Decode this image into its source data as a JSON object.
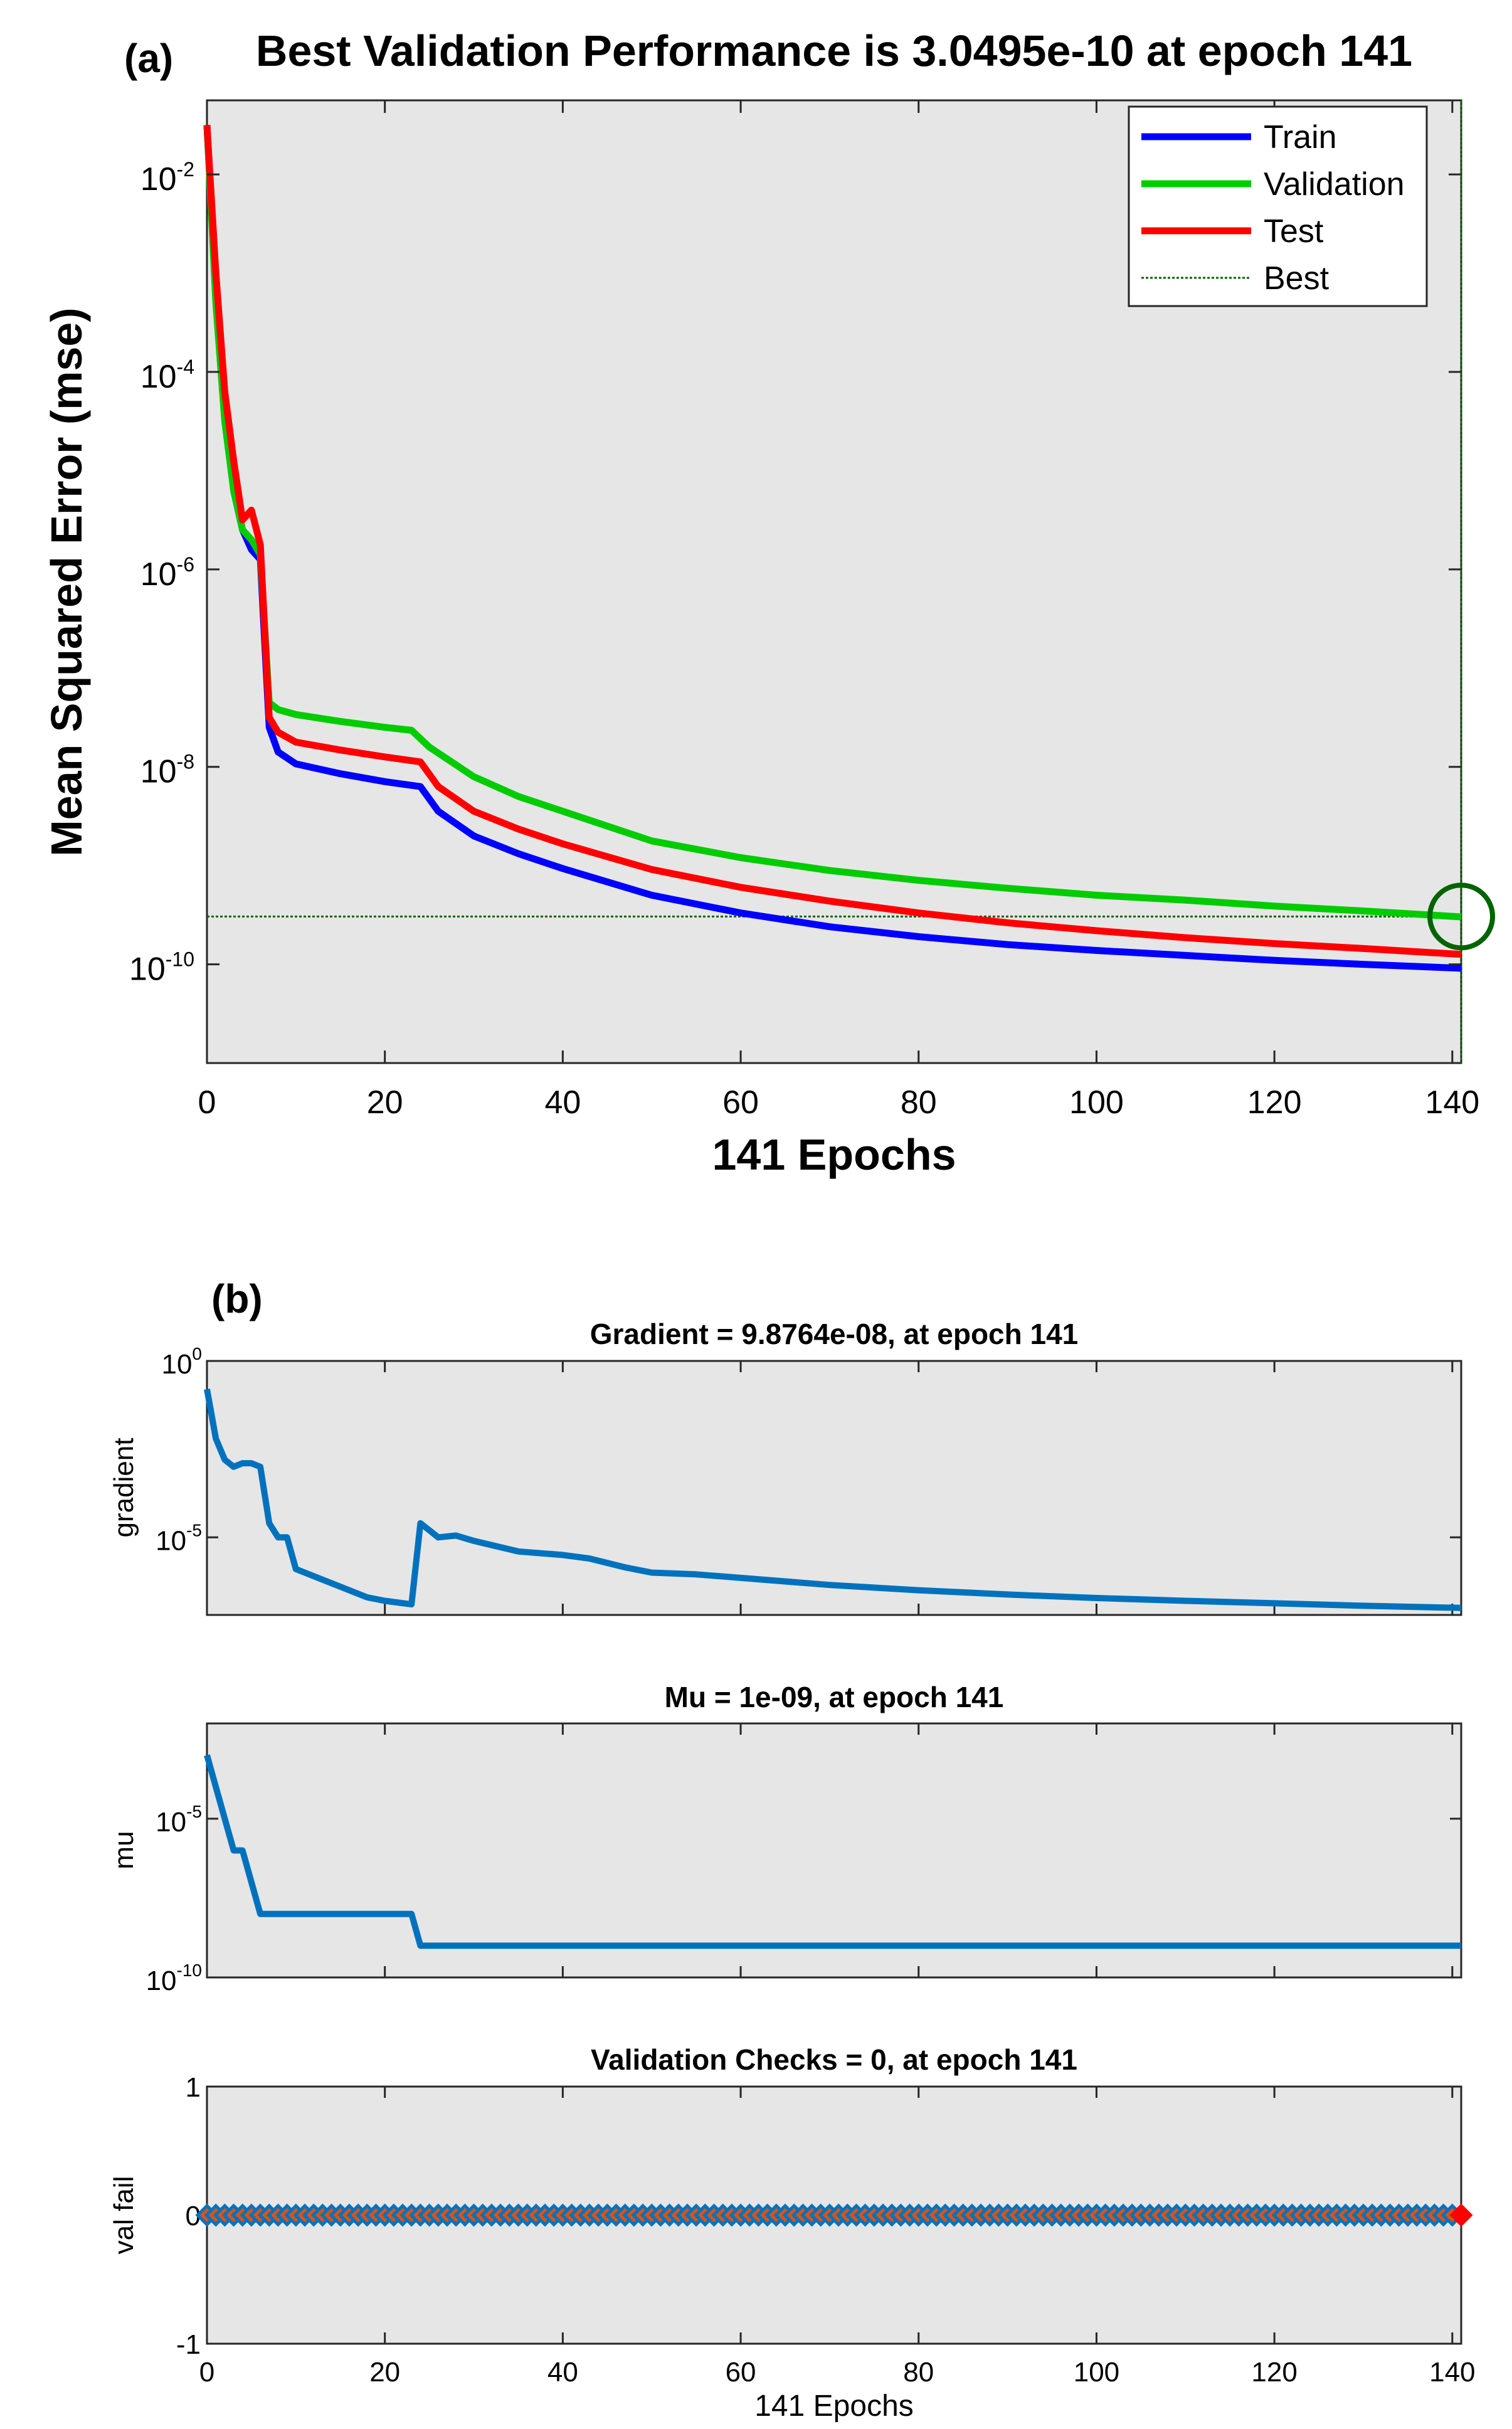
{
  "chart_data": [
    {
      "id": "performance",
      "type": "line",
      "panel_label": "(a)",
      "title": "Best Validation Performance is 3.0495e-10 at epoch 141",
      "xlabel": "141 Epochs",
      "ylabel": "Mean Squared Error  (mse)",
      "yscale": "log",
      "xlim": [
        0,
        141
      ],
      "ylim_log10": [
        -11,
        -1.25
      ],
      "x_ticks": [
        "0",
        "20",
        "40",
        "60",
        "80",
        "100",
        "120",
        "140"
      ],
      "y_ticks": [
        {
          "exp": -10,
          "label": "10",
          "sup": "-10"
        },
        {
          "exp": -8,
          "label": "10",
          "sup": "-8"
        },
        {
          "exp": -6,
          "label": "10",
          "sup": "-6"
        },
        {
          "exp": -4,
          "label": "10",
          "sup": "-4"
        },
        {
          "exp": -2,
          "label": "10",
          "sup": "-2"
        }
      ],
      "legend": [
        "Train",
        "Validation",
        "Test",
        "Best"
      ],
      "best": {
        "epoch": 141,
        "value": 3.0495e-10
      },
      "series": [
        {
          "name": "Train",
          "color": "#0000ff",
          "x": [
            0,
            1,
            2,
            3,
            4,
            5,
            6,
            7,
            8,
            10,
            15,
            20,
            24,
            26,
            30,
            35,
            40,
            50,
            60,
            70,
            80,
            90,
            100,
            110,
            120,
            130,
            141
          ],
          "log10": [
            -1.5,
            -3.2,
            -4.3,
            -5.2,
            -5.6,
            -5.8,
            -5.9,
            -7.6,
            -7.85,
            -7.97,
            -8.07,
            -8.15,
            -8.2,
            -8.45,
            -8.7,
            -8.88,
            -9.03,
            -9.3,
            -9.48,
            -9.62,
            -9.72,
            -9.8,
            -9.86,
            -9.91,
            -9.96,
            -10.0,
            -10.04
          ]
        },
        {
          "name": "Validation",
          "color": "#00cc00",
          "x": [
            0,
            1,
            2,
            3,
            4,
            5,
            6,
            7,
            8,
            10,
            15,
            20,
            23,
            25,
            30,
            35,
            40,
            50,
            60,
            70,
            80,
            90,
            100,
            110,
            120,
            130,
            141
          ],
          "log10": [
            -1.5,
            -3.3,
            -4.5,
            -5.2,
            -5.6,
            -5.7,
            -5.85,
            -7.35,
            -7.42,
            -7.47,
            -7.54,
            -7.6,
            -7.63,
            -7.8,
            -8.1,
            -8.3,
            -8.45,
            -8.75,
            -8.92,
            -9.05,
            -9.15,
            -9.23,
            -9.3,
            -9.35,
            -9.41,
            -9.46,
            -9.52
          ]
        },
        {
          "name": "Test",
          "color": "#ff0000",
          "x": [
            0,
            1,
            2,
            3,
            4,
            5,
            6,
            7,
            8,
            10,
            15,
            20,
            24,
            26,
            30,
            35,
            40,
            50,
            60,
            70,
            80,
            90,
            100,
            110,
            120,
            130,
            141
          ],
          "log10": [
            -1.5,
            -3.0,
            -4.2,
            -4.9,
            -5.5,
            -5.4,
            -5.75,
            -7.5,
            -7.65,
            -7.75,
            -7.83,
            -7.9,
            -7.95,
            -8.2,
            -8.45,
            -8.63,
            -8.78,
            -9.04,
            -9.22,
            -9.36,
            -9.48,
            -9.58,
            -9.66,
            -9.73,
            -9.79,
            -9.84,
            -9.9
          ]
        }
      ]
    },
    {
      "id": "gradient",
      "type": "line",
      "panel_label": "(b)",
      "title": "Gradient = 9.8764e-08, at epoch 141",
      "ylabel": "gradient",
      "yscale": "log",
      "ylim_log10": [
        -7.2,
        0
      ],
      "y_ticks": [
        {
          "exp": -5,
          "label": "10",
          "sup": "-5"
        },
        {
          "exp": 0,
          "label": "10",
          "sup": "0"
        }
      ],
      "color": "#0072bd",
      "x": [
        0,
        1,
        2,
        3,
        4,
        5,
        6,
        7,
        8,
        9,
        10,
        12,
        15,
        18,
        20,
        23,
        24,
        25,
        26,
        28,
        30,
        35,
        40,
        43,
        47,
        50,
        55,
        60,
        70,
        80,
        90,
        100,
        110,
        120,
        130,
        141
      ],
      "log10": [
        -0.8,
        -2.2,
        -2.8,
        -3.0,
        -2.9,
        -2.9,
        -3.0,
        -4.6,
        -5.0,
        -5.0,
        -5.9,
        -6.1,
        -6.4,
        -6.7,
        -6.8,
        -6.9,
        -4.6,
        -4.8,
        -5.0,
        -4.95,
        -5.1,
        -5.4,
        -5.5,
        -5.6,
        -5.85,
        -6.0,
        -6.05,
        -6.15,
        -6.35,
        -6.5,
        -6.62,
        -6.72,
        -6.8,
        -6.87,
        -6.94,
        -7.0
      ]
    },
    {
      "id": "mu",
      "type": "line",
      "title": "Mu = 1e-09, at epoch 141",
      "ylabel": "mu",
      "yscale": "log",
      "ylim_log10": [
        -10,
        -2
      ],
      "y_ticks": [
        {
          "exp": -10,
          "label": "10",
          "sup": "-10"
        },
        {
          "exp": -5,
          "label": "10",
          "sup": "-5"
        }
      ],
      "color": "#0072bd",
      "x": [
        0,
        1,
        2,
        3,
        4,
        5,
        6,
        23,
        24,
        141
      ],
      "log10": [
        -3,
        -4,
        -5,
        -6,
        -6,
        -7,
        -8,
        -8,
        -9,
        -9
      ]
    },
    {
      "id": "valfail",
      "type": "scatter",
      "title": "Validation Checks = 0, at epoch 141",
      "xlabel": "141 Epochs",
      "ylabel": "val fail",
      "ylim": [
        -1,
        1
      ],
      "y_ticks": [
        "-1",
        "0",
        "1"
      ],
      "x_ticks": [
        "0",
        "20",
        "40",
        "60",
        "80",
        "100",
        "120",
        "140"
      ],
      "epochs": 141,
      "value": 0,
      "marker_color": "#0072bd",
      "marker_fill": "#d95319",
      "last_marker_color": "#ff0000"
    }
  ]
}
